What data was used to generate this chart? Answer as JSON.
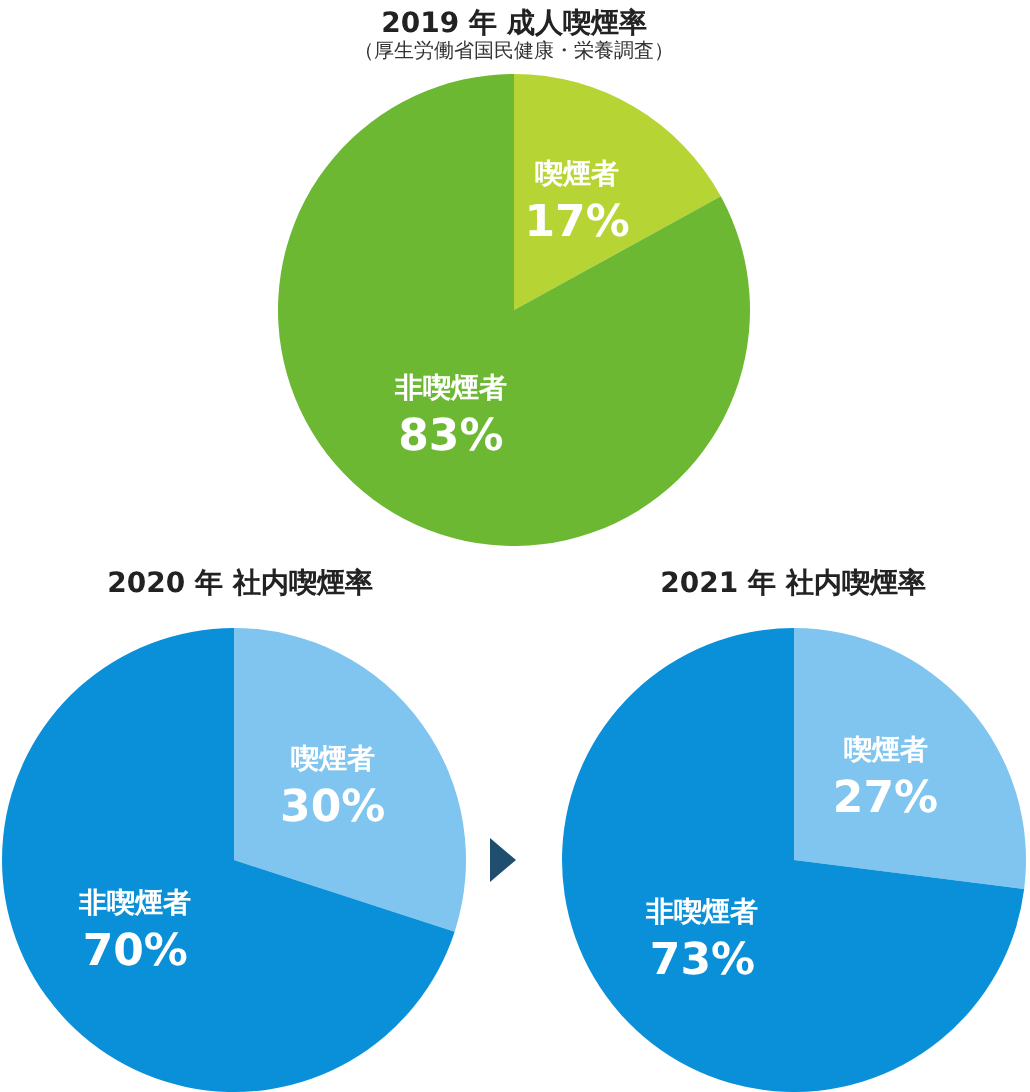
{
  "chart_data": [
    {
      "type": "pie",
      "title": "2019 年 成人喫煙率",
      "subtitle": "（厚生労働省国民健康・栄養調査）",
      "categories": [
        "喫煙者",
        "非喫煙者"
      ],
      "values": [
        17,
        83
      ],
      "value_labels": [
        "17%",
        "83%"
      ],
      "colors": [
        "#b6d433",
        "#6cb833"
      ]
    },
    {
      "type": "pie",
      "title": "2020 年 社内喫煙率",
      "categories": [
        "喫煙者",
        "非喫煙者"
      ],
      "values": [
        30,
        70
      ],
      "value_labels": [
        "30%",
        "70%"
      ],
      "colors": [
        "#7fc5ef",
        "#0a8fd9"
      ]
    },
    {
      "type": "pie",
      "title": "2021 年 社内喫煙率",
      "categories": [
        "喫煙者",
        "非喫煙者"
      ],
      "values": [
        27,
        73
      ],
      "value_labels": [
        "27%",
        "73%"
      ],
      "colors": [
        "#7fc5ef",
        "#0a8fd9"
      ]
    }
  ]
}
